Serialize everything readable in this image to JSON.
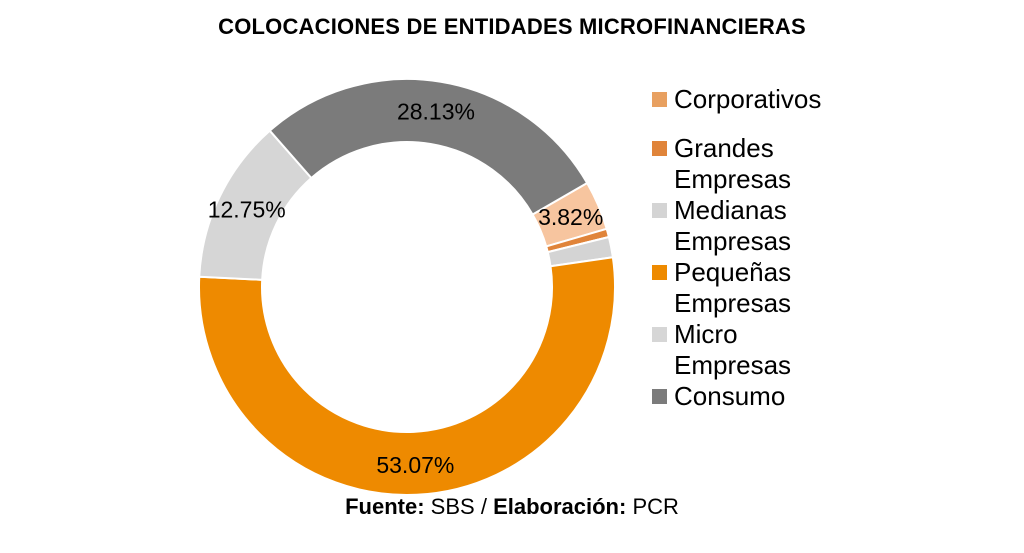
{
  "title": "COLOCACIONES DE ENTIDADES MICROFINANCIERAS",
  "source": {
    "label1": "Fuente:",
    "value1": "SBS",
    "separator": "/",
    "label2": "Elaboración:",
    "value2": "PCR"
  },
  "chart_data": {
    "type": "pie",
    "title": "COLOCACIONES DE ENTIDADES MICROFINANCIERAS",
    "donut": true,
    "legend_position": "right",
    "categories": [
      "Corporativos",
      "Grandes Empresas",
      "Medianas Empresas",
      "Pequeñas Empresas",
      "Micro Empresas",
      "Consumo"
    ],
    "values": [
      3.82,
      0.65,
      1.58,
      53.07,
      12.75,
      28.13
    ],
    "labels": [
      "3.82%",
      "",
      "",
      "53.07%",
      "12.75%",
      "28.13%"
    ],
    "colors": [
      "#F7C59F",
      "#E0843A",
      "#D4D4D4",
      "#EE8A00",
      "#D6D6D6",
      "#7B7B7B"
    ],
    "legend_colors": [
      "#E8A060",
      "#E0843A",
      "#D4D4D4",
      "#EE8A00",
      "#D6D6D6",
      "#7B7B7B"
    ]
  }
}
